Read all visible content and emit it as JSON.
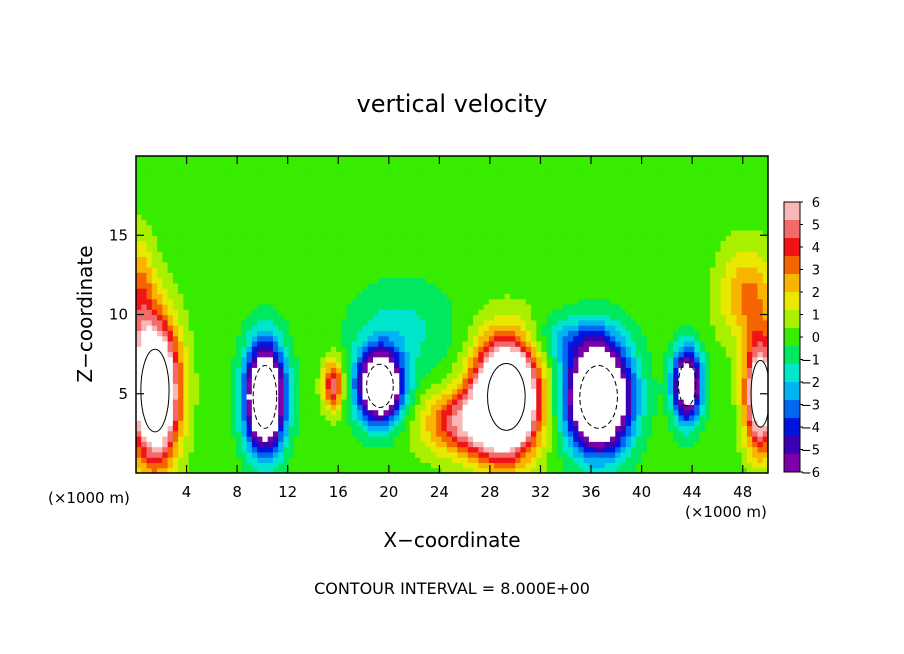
{
  "chart_data": {
    "type": "heatmap",
    "title": "vertical velocity",
    "xlabel": "X−coordinate",
    "ylabel": "Z−coordinate",
    "x_unit_left": "(×1000 m)",
    "x_unit_right": "(×1000 m)",
    "footer": "CONTOUR INTERVAL = 8.000E+00",
    "xlim": [
      0,
      50
    ],
    "ylim": [
      0,
      20
    ],
    "x_ticks": [
      4,
      8,
      12,
      16,
      20,
      24,
      28,
      32,
      36,
      40,
      44,
      48
    ],
    "y_ticks": [
      5,
      10,
      15
    ],
    "contour_interval": 8.0,
    "colorbar": {
      "min": -6,
      "max": 6,
      "tick_labels": [
        "6",
        "5",
        "4",
        "3",
        "2",
        "1",
        "0",
        "−1",
        "−2",
        "−3",
        "−4",
        "−5",
        "−6"
      ],
      "colors": [
        "#f9b6b6",
        "#f26a6a",
        "#f01414",
        "#f46400",
        "#f8b400",
        "#e8e800",
        "#a8f000",
        "#38ec00",
        "#00e860",
        "#00e6cc",
        "#00b4f4",
        "#0068f0",
        "#0014e0",
        "#3c00b4",
        "#7c00a8"
      ]
    },
    "features": [
      {
        "name": "updraft",
        "x": 1.5,
        "z": 5.2,
        "rx": 1.8,
        "rz": 4.2,
        "value": 12
      },
      {
        "name": "downdraft",
        "x": 10.2,
        "z": 4.8,
        "rx": 1.5,
        "rz": 3.2,
        "value": -12
      },
      {
        "name": "updraft",
        "x": 15.6,
        "z": 5.6,
        "rx": 0.8,
        "rz": 1.6,
        "value": 5
      },
      {
        "name": "downdraft",
        "x": 19.3,
        "z": 5.5,
        "rx": 1.7,
        "rz": 2.2,
        "value": -11
      },
      {
        "name": "updraft",
        "x": 29.3,
        "z": 4.8,
        "rx": 2.4,
        "rz": 3.4,
        "value": 14
      },
      {
        "name": "updraft",
        "x": 26.0,
        "z": 3.2,
        "rx": 3.2,
        "rz": 2.0,
        "value": 5
      },
      {
        "name": "downdraft",
        "x": 36.6,
        "z": 4.8,
        "rx": 2.4,
        "rz": 3.2,
        "value": -13
      },
      {
        "name": "downdraft",
        "x": 43.6,
        "z": 5.6,
        "rx": 1.1,
        "rz": 2.2,
        "value": -9
      },
      {
        "name": "updraft",
        "x": 49.4,
        "z": 5.0,
        "rx": 1.2,
        "rz": 3.4,
        "value": 9
      },
      {
        "name": "updraft",
        "x": 48.4,
        "z": 11.2,
        "rx": 2.2,
        "rz": 3.0,
        "value": 3
      },
      {
        "name": "updraft",
        "x": 0.3,
        "z": 11.2,
        "rx": 1.2,
        "rz": 3.5,
        "value": 3
      },
      {
        "name": "downdraft",
        "x": 34.5,
        "z": 8.4,
        "rx": 3.0,
        "rz": 1.5,
        "value": -2
      },
      {
        "name": "downdraft",
        "x": 21.0,
        "z": 9.0,
        "rx": 4.0,
        "rz": 3.0,
        "value": -1.5
      }
    ]
  }
}
